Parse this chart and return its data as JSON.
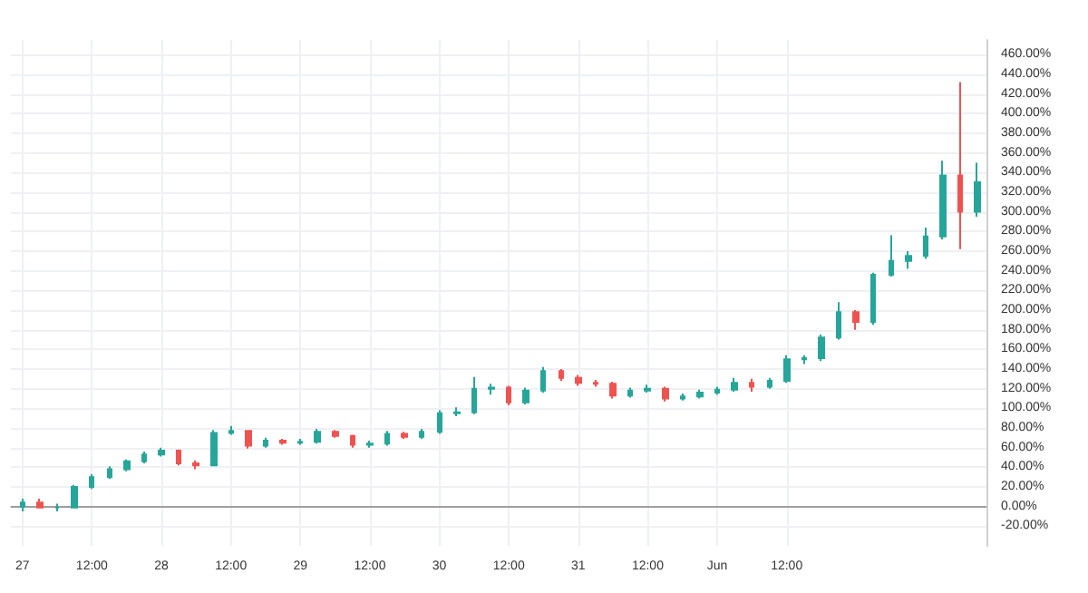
{
  "chart_data": {
    "type": "candlestick",
    "grid": true,
    "x": [
      "--05-27T00:00",
      "--05-27T03:00",
      "--05-27T06:00",
      "--05-27T09:00",
      "--05-27T12:00",
      "--05-27T15:00",
      "--05-27T18:00",
      "--05-27T21:00",
      "--05-28T00:00",
      "--05-28T03:00",
      "--05-28T06:00",
      "--05-28T09:00",
      "--05-28T12:00",
      "--05-28T15:00",
      "--05-28T18:00",
      "--05-28T21:00",
      "--05-29T00:00",
      "--05-29T03:00",
      "--05-29T06:00",
      "--05-29T09:00",
      "--05-29T12:00",
      "--05-29T15:00",
      "--05-29T18:00",
      "--05-29T21:00",
      "--05-30T00:00",
      "--05-30T03:00",
      "--05-30T06:00",
      "--05-30T09:00",
      "--05-30T12:00",
      "--05-30T15:00",
      "--05-30T18:00",
      "--05-30T21:00",
      "--05-31T00:00",
      "--05-31T03:00",
      "--05-31T06:00",
      "--05-31T09:00",
      "--05-31T12:00",
      "--05-31T15:00",
      "--05-31T18:00",
      "--05-31T21:00",
      "--06-01T00:00",
      "--06-01T03:00",
      "--06-01T06:00",
      "--06-01T09:00",
      "--06-01T12:00",
      "--06-01T15:00",
      "--06-01T18:00",
      "--06-01T21:00",
      "--06-02T00:00",
      "--06-02T03:00",
      "--06-02T06:00",
      "--06-02T09:00",
      "--06-02T12:00",
      "--06-02T15:00",
      "--06-02T18:00",
      "--06-02T21:00"
    ],
    "ohlc": [
      [
        0,
        8,
        -5,
        4
      ],
      [
        4,
        8,
        -2,
        -1
      ],
      [
        -1,
        3,
        -5,
        -1
      ],
      [
        -1,
        22,
        -2,
        20
      ],
      [
        20,
        33,
        18,
        30
      ],
      [
        30,
        41,
        28,
        38
      ],
      [
        38,
        48,
        36,
        46
      ],
      [
        46,
        56,
        44,
        53
      ],
      [
        53,
        60,
        51,
        57
      ],
      [
        57,
        58,
        42,
        44
      ],
      [
        44,
        47,
        38,
        42
      ],
      [
        42,
        78,
        41,
        75
      ],
      [
        75,
        82,
        73,
        77
      ],
      [
        77,
        78,
        59,
        62
      ],
      [
        62,
        70,
        60,
        67
      ],
      [
        67,
        69,
        63,
        65
      ],
      [
        65,
        69,
        63,
        66
      ],
      [
        66,
        79,
        64,
        76
      ],
      [
        76,
        78,
        70,
        72
      ],
      [
        72,
        73,
        60,
        63
      ],
      [
        63,
        67,
        60,
        64
      ],
      [
        64,
        77,
        62,
        74
      ],
      [
        74,
        76,
        69,
        71
      ],
      [
        71,
        79,
        69,
        76
      ],
      [
        76,
        98,
        74,
        95
      ],
      [
        95,
        101,
        92,
        96
      ],
      [
        96,
        132,
        94,
        120
      ],
      [
        120,
        125,
        114,
        121
      ],
      [
        121,
        123,
        103,
        106
      ],
      [
        106,
        121,
        104,
        118
      ],
      [
        118,
        142,
        116,
        138
      ],
      [
        138,
        140,
        128,
        131
      ],
      [
        131,
        134,
        123,
        126
      ],
      [
        126,
        129,
        122,
        125
      ],
      [
        125,
        127,
        110,
        113
      ],
      [
        113,
        121,
        111,
        118
      ],
      [
        118,
        124,
        116,
        120
      ],
      [
        120,
        122,
        107,
        110
      ],
      [
        110,
        115,
        108,
        112
      ],
      [
        112,
        119,
        110,
        116
      ],
      [
        116,
        122,
        114,
        119
      ],
      [
        119,
        131,
        117,
        126
      ],
      [
        126,
        130,
        117,
        122
      ],
      [
        122,
        131,
        120,
        128
      ],
      [
        128,
        154,
        126,
        150
      ],
      [
        150,
        154,
        145,
        151
      ],
      [
        151,
        175,
        148,
        172
      ],
      [
        172,
        208,
        170,
        198
      ],
      [
        198,
        200,
        180,
        188
      ],
      [
        188,
        238,
        185,
        236
      ],
      [
        236,
        276,
        234,
        250
      ],
      [
        250,
        260,
        242,
        255
      ],
      [
        255,
        284,
        252,
        275
      ],
      [
        275,
        352,
        272,
        337
      ],
      [
        337,
        432,
        262,
        300
      ],
      [
        300,
        350,
        295,
        330
      ]
    ],
    "xlim": [
      "--05-26T22:00",
      "--06-02T22:30"
    ],
    "xticks": [
      {
        "value": "--05-27T00:00",
        "label": "27"
      },
      {
        "value": "--05-27T12:00",
        "label": "12:00"
      },
      {
        "value": "--05-28T00:00",
        "label": "28"
      },
      {
        "value": "--05-28T12:00",
        "label": "12:00"
      },
      {
        "value": "--05-29T00:00",
        "label": "29"
      },
      {
        "value": "--05-29T12:00",
        "label": "12:00"
      },
      {
        "value": "--05-30T00:00",
        "label": "30"
      },
      {
        "value": "--05-30T12:00",
        "label": "12:00"
      },
      {
        "value": "--05-31T00:00",
        "label": "31"
      },
      {
        "value": "--05-31T12:00",
        "label": "12:00"
      },
      {
        "value": "--06-01T00:00",
        "label": "Jun"
      },
      {
        "value": "--06-01T12:00",
        "label": "12:00"
      }
    ],
    "ylim": [
      -40,
      475
    ],
    "yticks": [
      {
        "value": -20,
        "label": "-20.00%"
      },
      {
        "value": 0,
        "label": "0.00%"
      },
      {
        "value": 20,
        "label": "20.00%"
      },
      {
        "value": 40,
        "label": "40.00%"
      },
      {
        "value": 60,
        "label": "60.00%"
      },
      {
        "value": 80,
        "label": "80.00%"
      },
      {
        "value": 100,
        "label": "100.00%"
      },
      {
        "value": 120,
        "label": "120.00%"
      },
      {
        "value": 140,
        "label": "140.00%"
      },
      {
        "value": 160,
        "label": "160.00%"
      },
      {
        "value": 180,
        "label": "180.00%"
      },
      {
        "value": 200,
        "label": "200.00%"
      },
      {
        "value": 220,
        "label": "220.00%"
      },
      {
        "value": 240,
        "label": "240.00%"
      },
      {
        "value": 260,
        "label": "260.00%"
      },
      {
        "value": 280,
        "label": "280.00%"
      },
      {
        "value": 300,
        "label": "300.00%"
      },
      {
        "value": 320,
        "label": "320.00%"
      },
      {
        "value": 340,
        "label": "340.00%"
      },
      {
        "value": 360,
        "label": "360.00%"
      },
      {
        "value": 380,
        "label": "380.00%"
      },
      {
        "value": 400,
        "label": "400.00%"
      },
      {
        "value": 420,
        "label": "420.00%"
      },
      {
        "value": 440,
        "label": "440.00%"
      },
      {
        "value": 460,
        "label": "460.00%"
      }
    ],
    "ref_lines": [
      {
        "axis": "y",
        "value": 0,
        "color": "#9e9e9e"
      }
    ]
  }
}
